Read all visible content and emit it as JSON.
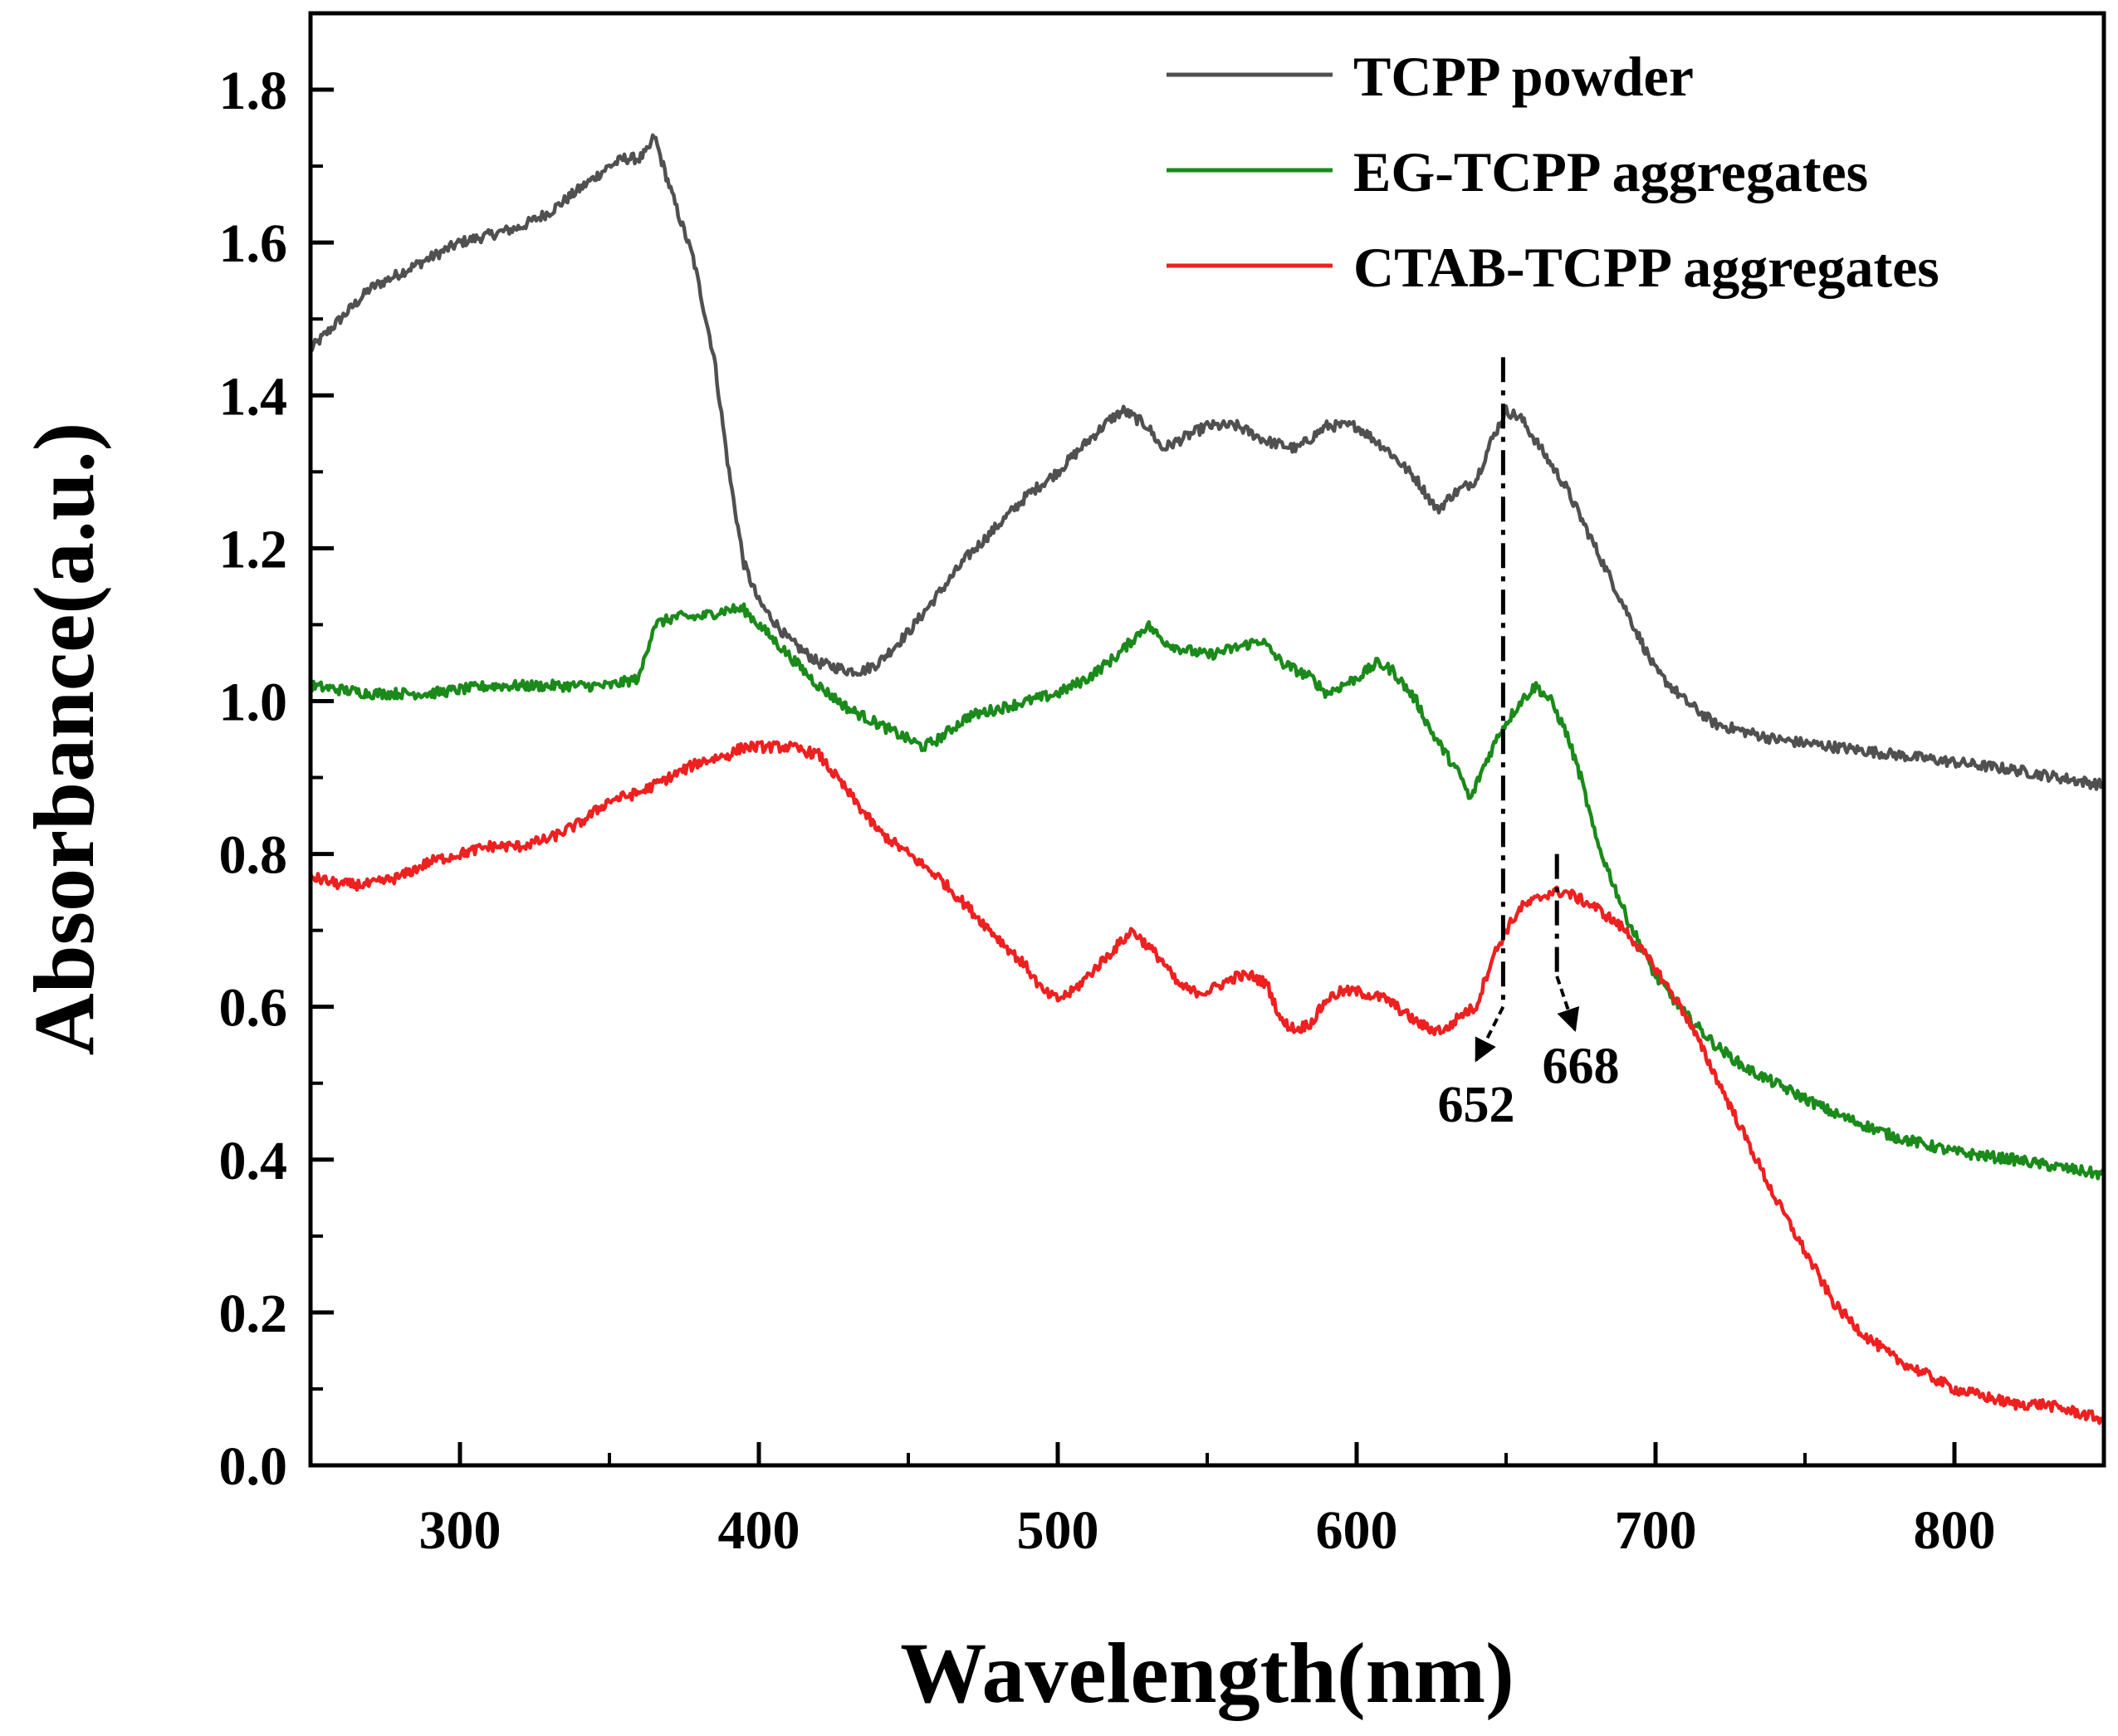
{
  "chart_data": {
    "type": "line",
    "xlabel": "Wavelength(nm)",
    "ylabel": "Absorbance(a.u.)",
    "xlim": [
      250,
      850
    ],
    "ylim": [
      0.0,
      1.9
    ],
    "x_ticks": [
      300,
      400,
      500,
      600,
      700,
      800
    ],
    "x_tick_labels": [
      "300",
      "400",
      "500",
      "600",
      "700",
      "800"
    ],
    "y_ticks": [
      0.0,
      0.2,
      0.4,
      0.6,
      0.8,
      1.0,
      1.2,
      1.4,
      1.6,
      1.8
    ],
    "y_tick_labels": [
      "0.0",
      "0.2",
      "0.4",
      "0.6",
      "0.8",
      "1.0",
      "1.2",
      "1.4",
      "1.6",
      "1.8"
    ],
    "legend_position": "top-right",
    "series": [
      {
        "name": "TCPP powder",
        "color": "#505050",
        "x": [
          250,
          260,
          270,
          280,
          290,
          300,
          310,
          320,
          330,
          340,
          350,
          355,
          360,
          363,
          365,
          368,
          372,
          378,
          385,
          390,
          395,
          400,
          410,
          420,
          430,
          435,
          440,
          450,
          460,
          470,
          480,
          490,
          500,
          510,
          518,
          522,
          530,
          535,
          540,
          550,
          560,
          570,
          580,
          590,
          600,
          610,
          620,
          627,
          632,
          640,
          645,
          650,
          655,
          660,
          670,
          680,
          690,
          700,
          710,
          720,
          740,
          760,
          780,
          800,
          820,
          835,
          850
        ],
        "y": [
          1.46,
          1.5,
          1.54,
          1.56,
          1.58,
          1.6,
          1.61,
          1.62,
          1.64,
          1.67,
          1.7,
          1.71,
          1.71,
          1.72,
          1.74,
          1.7,
          1.65,
          1.58,
          1.45,
          1.3,
          1.18,
          1.13,
          1.08,
          1.05,
          1.04,
          1.04,
          1.05,
          1.09,
          1.14,
          1.19,
          1.23,
          1.27,
          1.3,
          1.34,
          1.37,
          1.38,
          1.36,
          1.33,
          1.34,
          1.36,
          1.36,
          1.34,
          1.33,
          1.36,
          1.36,
          1.33,
          1.29,
          1.25,
          1.27,
          1.29,
          1.34,
          1.38,
          1.37,
          1.34,
          1.28,
          1.2,
          1.12,
          1.04,
          1.0,
          0.97,
          0.95,
          0.94,
          0.93,
          0.92,
          0.91,
          0.9,
          0.89
        ]
      },
      {
        "name": "EG-TCPP aggregates",
        "color": "#1a8a1a",
        "x": [
          250,
          270,
          290,
          310,
          330,
          350,
          360,
          362,
          365,
          372,
          380,
          390,
          395,
          400,
          410,
          420,
          430,
          440,
          450,
          455,
          460,
          470,
          480,
          490,
          500,
          510,
          520,
          525,
          530,
          535,
          540,
          550,
          560,
          568,
          575,
          580,
          585,
          590,
          600,
          607,
          612,
          620,
          625,
          630,
          635,
          638,
          642,
          648,
          655,
          660,
          665,
          670,
          675,
          680,
          690,
          700,
          710,
          720,
          730,
          740,
          760,
          780,
          800,
          820,
          850
        ],
        "y": [
          1.02,
          1.01,
          1.01,
          1.02,
          1.02,
          1.02,
          1.03,
          1.06,
          1.1,
          1.11,
          1.11,
          1.12,
          1.12,
          1.1,
          1.06,
          1.02,
          0.99,
          0.97,
          0.95,
          0.94,
          0.95,
          0.98,
          0.99,
          1.0,
          1.01,
          1.03,
          1.06,
          1.08,
          1.1,
          1.08,
          1.07,
          1.06,
          1.07,
          1.08,
          1.05,
          1.04,
          1.03,
          1.01,
          1.03,
          1.05,
          1.04,
          1.0,
          0.96,
          0.93,
          0.9,
          0.87,
          0.91,
          0.96,
          1.0,
          1.02,
          1.0,
          0.96,
          0.9,
          0.82,
          0.72,
          0.64,
          0.59,
          0.55,
          0.52,
          0.5,
          0.46,
          0.43,
          0.41,
          0.4,
          0.38
        ]
      },
      {
        "name": "CTAB-TCPP aggregates",
        "color": "#ee2020",
        "x": [
          250,
          260,
          270,
          280,
          290,
          300,
          310,
          320,
          330,
          340,
          350,
          360,
          370,
          380,
          390,
          395,
          400,
          410,
          420,
          430,
          440,
          450,
          460,
          470,
          480,
          490,
          495,
          500,
          505,
          510,
          520,
          525,
          530,
          535,
          540,
          545,
          550,
          560,
          565,
          570,
          575,
          580,
          585,
          590,
          595,
          600,
          610,
          620,
          625,
          630,
          635,
          640,
          645,
          650,
          655,
          660,
          665,
          670,
          675,
          680,
          690,
          700,
          710,
          720,
          730,
          740,
          750,
          760,
          770,
          780,
          790,
          800,
          810,
          820,
          830,
          840,
          850
        ],
        "y": [
          0.77,
          0.76,
          0.76,
          0.77,
          0.79,
          0.8,
          0.81,
          0.81,
          0.82,
          0.84,
          0.87,
          0.88,
          0.9,
          0.92,
          0.93,
          0.94,
          0.94,
          0.94,
          0.93,
          0.88,
          0.83,
          0.8,
          0.77,
          0.73,
          0.69,
          0.65,
          0.62,
          0.61,
          0.62,
          0.64,
          0.68,
          0.7,
          0.68,
          0.66,
          0.63,
          0.62,
          0.62,
          0.64,
          0.64,
          0.63,
          0.58,
          0.57,
          0.58,
          0.61,
          0.62,
          0.62,
          0.61,
          0.58,
          0.57,
          0.57,
          0.59,
          0.6,
          0.66,
          0.7,
          0.73,
          0.74,
          0.75,
          0.75,
          0.74,
          0.73,
          0.7,
          0.65,
          0.59,
          0.51,
          0.43,
          0.35,
          0.28,
          0.21,
          0.17,
          0.14,
          0.12,
          0.1,
          0.09,
          0.08,
          0.08,
          0.07,
          0.06
        ]
      }
    ],
    "annotations": [
      {
        "label": "652",
        "line_x": 649,
        "line_y_top": 1.45,
        "line_y_bottom": 0.6,
        "arrow_to_x": 640,
        "arrow_to_y": 0.53,
        "text_x": 640,
        "text_y": 0.45
      },
      {
        "label": "668",
        "line_x": 667,
        "line_y_top": 0.8,
        "line_y_bottom": 0.64,
        "arrow_to_x": 673,
        "arrow_to_y": 0.57,
        "text_x": 675,
        "text_y": 0.5
      }
    ]
  }
}
